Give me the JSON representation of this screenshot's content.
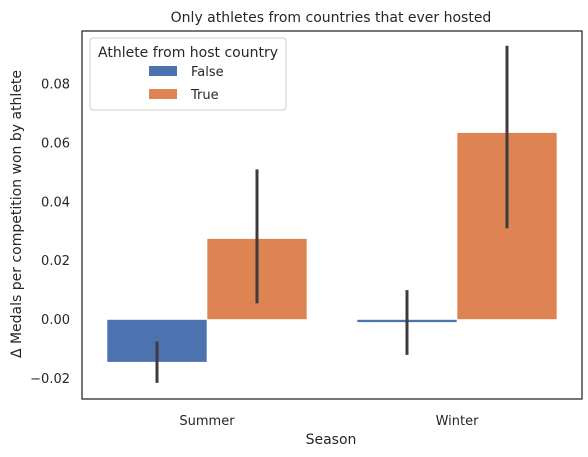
{
  "chart_data": {
    "type": "bar",
    "title": "Only athletes from countries that ever hosted",
    "xlabel": "Season",
    "ylabel": "Δ Medals per competition won by athlete",
    "categories": [
      "Summer",
      "Winter"
    ],
    "ylim": [
      -0.027,
      0.098
    ],
    "yticks": [
      -0.02,
      0.0,
      0.02,
      0.04,
      0.06,
      0.08
    ],
    "ytick_labels": [
      "−0.02",
      "0.00",
      "0.02",
      "0.04",
      "0.06",
      "0.08"
    ],
    "grid": false,
    "legend": {
      "title": "Athlete from host country",
      "placement": "top-left"
    },
    "series": [
      {
        "name": "False",
        "color": "#4c72b0",
        "values": [
          -0.0145,
          -0.001
        ],
        "ci_low": [
          -0.0215,
          -0.012
        ],
        "ci_high": [
          -0.0075,
          0.01
        ]
      },
      {
        "name": "True",
        "color": "#dd8452",
        "values": [
          0.0275,
          0.0635
        ],
        "ci_low": [
          0.0055,
          0.031
        ],
        "ci_high": [
          0.051,
          0.093
        ]
      }
    ]
  }
}
